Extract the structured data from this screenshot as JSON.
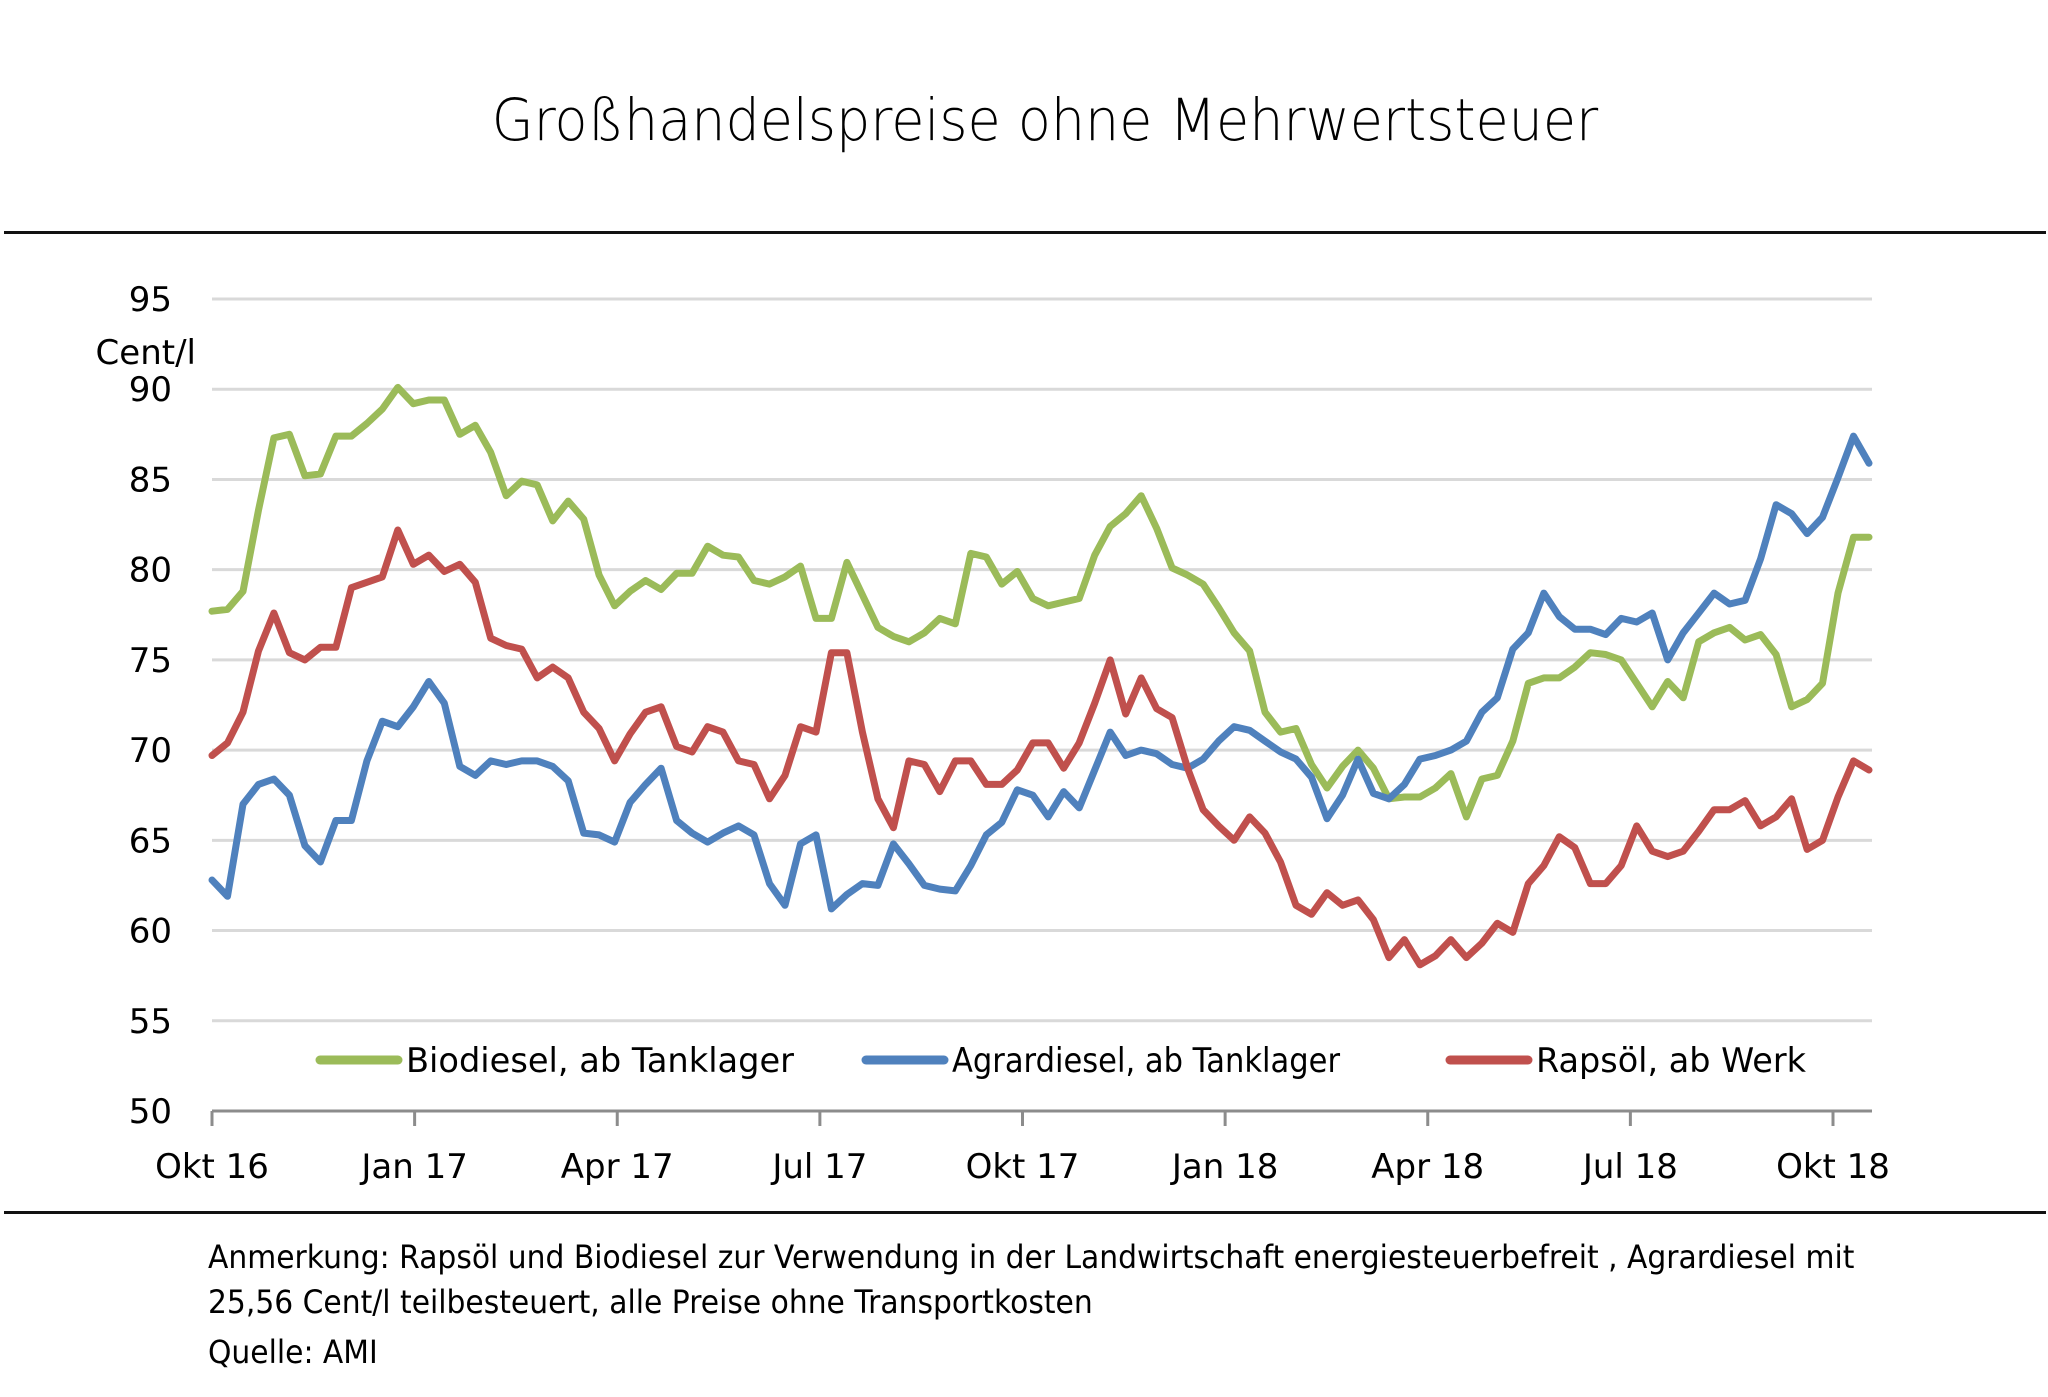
{
  "title": "Großhandelspreise ohne Mehrwertsteuer",
  "chart_data": {
    "type": "line",
    "title": "Großhandelspreise ohne Mehrwertsteuer",
    "xlabel": "",
    "ylabel": "Cent/l",
    "ylim": [
      50,
      95
    ],
    "yticks": [
      "95",
      "90",
      "85",
      "80",
      "75",
      "70",
      "65",
      "60",
      "55",
      "50"
    ],
    "ytick_values": [
      95,
      90,
      85,
      80,
      75,
      70,
      65,
      60,
      55,
      50
    ],
    "xticks": [
      "Okt 16",
      "Jan 17",
      "Apr 17",
      "Jul 17",
      "Okt 17",
      "Jan 18",
      "Apr 18",
      "Jul 18",
      "Okt 18"
    ],
    "x_frequency": "weekly",
    "grid": true,
    "legend": "bottom-inside",
    "series": [
      {
        "name": "Biodiesel, ab Tanklager",
        "color": "#9bbb59",
        "values": [
          77.7,
          77.8,
          78.8,
          83.3,
          87.3,
          87.5,
          85.2,
          85.3,
          87.4,
          87.4,
          88.1,
          88.9,
          90.1,
          89.2,
          89.4,
          89.4,
          87.5,
          88.0,
          86.5,
          84.1,
          84.9,
          84.7,
          82.7,
          83.8,
          82.8,
          79.7,
          78.0,
          78.8,
          79.4,
          78.9,
          79.8,
          79.8,
          81.3,
          80.8,
          80.7,
          79.4,
          79.2,
          79.6,
          80.2,
          77.3,
          77.3,
          80.4,
          78.6,
          76.8,
          76.3,
          76.0,
          76.5,
          77.3,
          77.0,
          80.9,
          80.7,
          79.2,
          79.9,
          78.4,
          78.0,
          78.2,
          78.4,
          80.8,
          82.4,
          83.1,
          84.1,
          82.3,
          80.1,
          79.7,
          79.2,
          77.9,
          76.5,
          75.5,
          72.1,
          71.0,
          71.2,
          69.2,
          67.9,
          69.1,
          70.0,
          69.0,
          67.3,
          67.4,
          67.4,
          67.9,
          68.7,
          66.3,
          68.4,
          68.6,
          70.5,
          73.7,
          74.0,
          74.0,
          74.6,
          75.4,
          75.3,
          75.0,
          73.7,
          72.4,
          73.8,
          72.9,
          76.0,
          76.5,
          76.8,
          76.1,
          76.4,
          75.3,
          72.4,
          72.8,
          73.7,
          78.7,
          81.8,
          81.8
        ]
      },
      {
        "name": "Agrardiesel, ab Tanklager",
        "color": "#4f81bd",
        "values": [
          62.8,
          61.9,
          67.0,
          68.1,
          68.4,
          67.5,
          64.7,
          63.8,
          66.1,
          66.1,
          69.4,
          71.6,
          71.3,
          72.4,
          73.8,
          72.6,
          69.1,
          68.6,
          69.4,
          69.2,
          69.4,
          69.4,
          69.1,
          68.3,
          65.4,
          65.3,
          64.9,
          67.1,
          68.1,
          69.0,
          66.1,
          65.4,
          64.9,
          65.4,
          65.8,
          65.3,
          62.6,
          61.4,
          64.8,
          65.3,
          61.2,
          62.0,
          62.6,
          62.5,
          64.8,
          63.7,
          62.5,
          62.3,
          62.2,
          63.6,
          65.3,
          66.0,
          67.8,
          67.5,
          66.3,
          67.7,
          66.8,
          68.9,
          71.0,
          69.7,
          70.0,
          69.8,
          69.2,
          69.0,
          69.5,
          70.5,
          71.3,
          71.1,
          70.5,
          69.9,
          69.5,
          68.5,
          66.2,
          67.5,
          69.5,
          67.6,
          67.3,
          68.1,
          69.5,
          69.7,
          70.0,
          70.5,
          72.1,
          72.9,
          75.6,
          76.5,
          78.7,
          77.4,
          76.7,
          76.7,
          76.4,
          77.3,
          77.1,
          77.6,
          75.0,
          76.5,
          77.6,
          78.7,
          78.1,
          78.3,
          80.6,
          83.6,
          83.1,
          82.0,
          82.9,
          85.1,
          87.4,
          85.9
        ]
      },
      {
        "name": "Rapsöl, ab Werk",
        "color": "#c0504d",
        "values": [
          69.7,
          70.4,
          72.1,
          75.5,
          77.6,
          75.4,
          75.0,
          75.7,
          75.7,
          79.0,
          79.3,
          79.6,
          82.2,
          80.3,
          80.8,
          79.9,
          80.3,
          79.3,
          76.2,
          75.8,
          75.6,
          74.0,
          74.6,
          74.0,
          72.1,
          71.2,
          69.4,
          70.9,
          72.1,
          72.4,
          70.2,
          69.9,
          71.3,
          71.0,
          69.4,
          69.2,
          67.3,
          68.6,
          71.3,
          71.0,
          75.4,
          75.4,
          71.0,
          67.3,
          65.7,
          69.4,
          69.2,
          67.7,
          69.4,
          69.4,
          68.1,
          68.1,
          68.9,
          70.4,
          70.4,
          69.0,
          70.4,
          72.6,
          75.0,
          72.0,
          74.0,
          72.3,
          71.8,
          69.0,
          66.7,
          65.8,
          65.0,
          66.3,
          65.4,
          63.8,
          61.4,
          60.9,
          62.1,
          61.4,
          61.7,
          60.6,
          58.5,
          59.5,
          58.1,
          58.6,
          59.5,
          58.5,
          59.3,
          60.4,
          59.9,
          62.6,
          63.6,
          65.2,
          64.6,
          62.6,
          62.6,
          63.6,
          65.8,
          64.4,
          64.1,
          64.4,
          65.5,
          66.7,
          66.7,
          67.2,
          65.8,
          66.3,
          67.3,
          64.5,
          65.0,
          67.4,
          69.4,
          68.9
        ]
      }
    ]
  },
  "notes": {
    "line1": "Anmerkung: Rapsöl und Biodiesel zur Verwendung in der Landwirtschaft energiesteuerbefreit , Agrardiesel mit",
    "line2": "25,56 Cent/l teilbesteuert, alle Preise ohne Transportkosten",
    "source": "Quelle: AMI"
  }
}
